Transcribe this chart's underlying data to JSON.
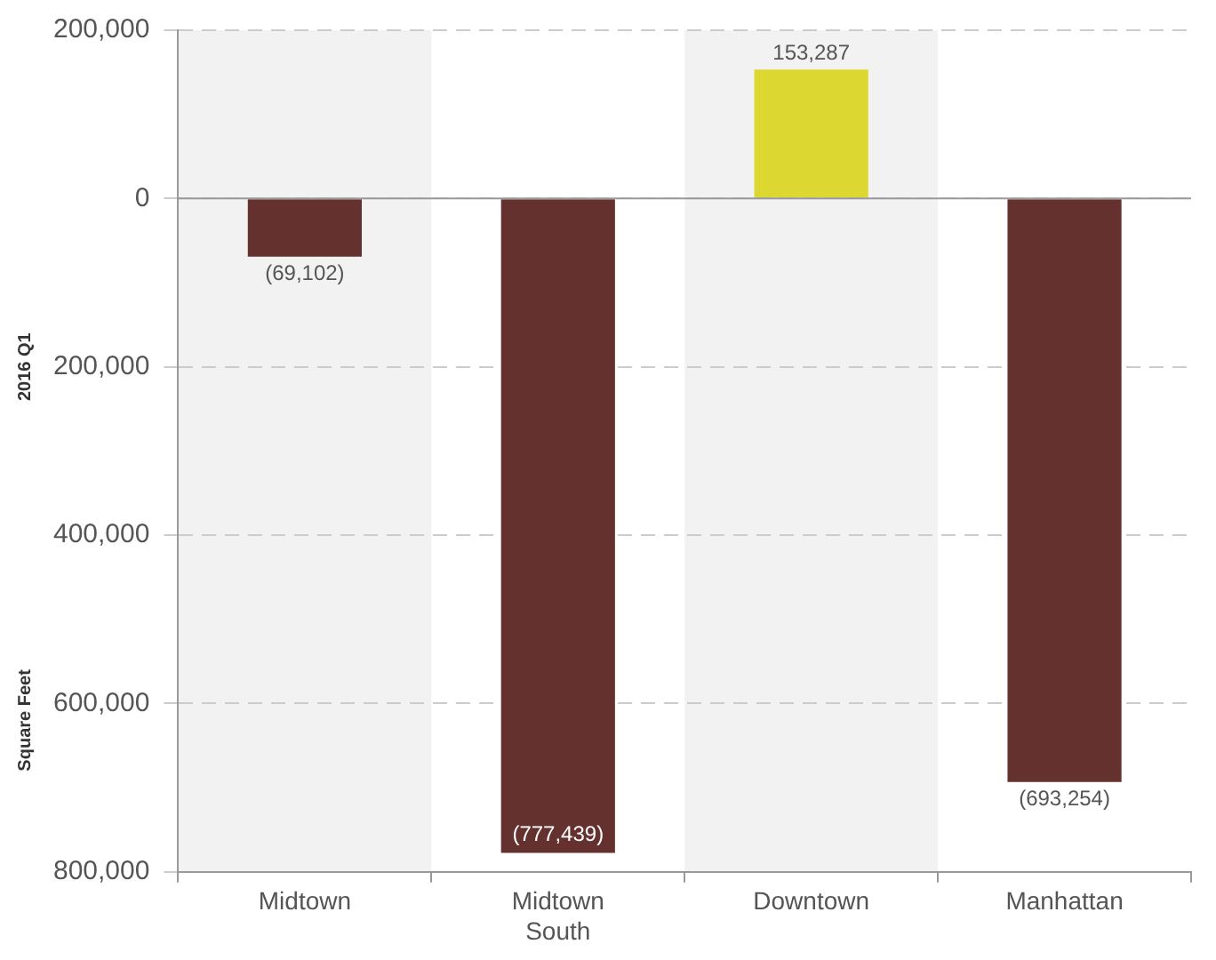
{
  "chart_data": {
    "type": "bar",
    "ylabel": "Square Feet",
    "annotations": [
      "2016 Q1"
    ],
    "categories": [
      "Midtown",
      "Midtown South",
      "Downtown",
      "Manhattan"
    ],
    "values": [
      -69102,
      -777439,
      153287,
      -693254
    ],
    "colors": [
      "#65312f",
      "#65312f",
      "#dcd831",
      "#65312f"
    ],
    "value_labels": [
      "(69,102)",
      "(777,439)",
      "153,287",
      "(693,254)"
    ],
    "ylim": [
      -800000,
      200000
    ],
    "yticks": [
      {
        "value": 200000,
        "label": "200,000"
      },
      {
        "value": 0,
        "label": "0"
      },
      {
        "value": -200000,
        "label": "200,000"
      },
      {
        "value": -400000,
        "label": "400,000"
      },
      {
        "value": -600000,
        "label": "600,000"
      },
      {
        "value": -800000,
        "label": "800,000"
      }
    ],
    "bands": [
      {
        "axis": "x",
        "from": "Midtown",
        "to": "Midtown",
        "color": "#f2f2f2"
      },
      {
        "axis": "x",
        "from": "Downtown",
        "to": "Downtown",
        "color": "#f2f2f2"
      }
    ],
    "grid": "y",
    "legend": false
  }
}
